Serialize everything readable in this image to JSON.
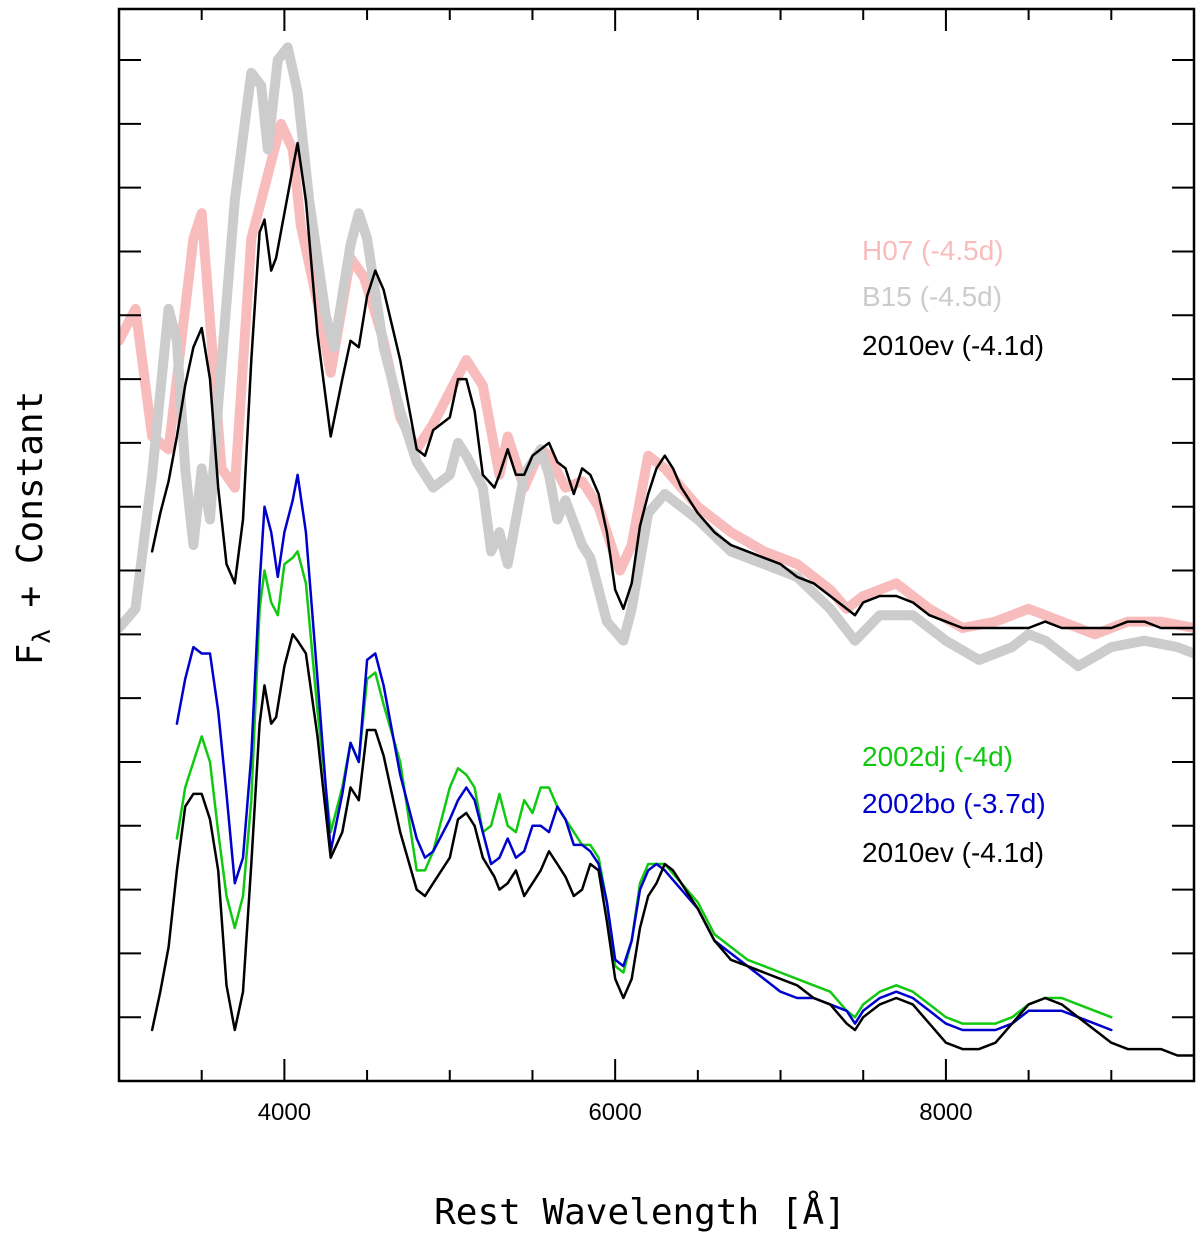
{
  "chart_data": {
    "type": "line",
    "xlabel": "Rest Wavelength [Å]",
    "ylabel": "F",
    "ylabel_subscript": "λ",
    "ylabel_suffix": " + Constant",
    "xlim": [
      3000,
      9500
    ],
    "ylim": [
      0,
      16.8
    ],
    "xticks_major": [
      4000,
      6000,
      8000
    ],
    "xtick_labels": [
      "4000",
      "6000",
      "8000"
    ],
    "xticks_minor": [
      3000,
      3500,
      4500,
      5000,
      5500,
      6500,
      7000,
      7500,
      8500,
      9000,
      9500
    ],
    "yticks": [
      1,
      2,
      3,
      4,
      5,
      6,
      7,
      8,
      9,
      10,
      11,
      12,
      13,
      14,
      15,
      16
    ],
    "legends": [
      {
        "group": "upper",
        "entries": [
          {
            "label": "H07 (-4.5d)",
            "color": "#f9bcbc"
          },
          {
            "label": "B15 (-4.5d)",
            "color": "#cccccc"
          },
          {
            "label": "2010ev (-4.1d)",
            "color": "#000000"
          }
        ]
      },
      {
        "group": "lower",
        "entries": [
          {
            "label": "2002dj (-4d)",
            "color": "#11c911"
          },
          {
            "label": "2002bo (-3.7d)",
            "color": "#0000cc"
          },
          {
            "label": "2010ev (-4.1d)",
            "color": "#000000"
          }
        ]
      }
    ],
    "series": [
      {
        "name": "H07 (-4.5d)",
        "color": "#f9bcbc",
        "width": 10,
        "x": [
          3000,
          3100,
          3200,
          3300,
          3450,
          3500,
          3620,
          3700,
          3800,
          3900,
          3980,
          4050,
          4100,
          4200,
          4280,
          4400,
          4480,
          4530,
          4600,
          4700,
          4800,
          4900,
          5000,
          5100,
          5200,
          5300,
          5350,
          5450,
          5550,
          5600,
          5700,
          5800,
          5900,
          6000,
          6030,
          6100,
          6200,
          6300,
          6500,
          6700,
          6900,
          7100,
          7300,
          7400,
          7500,
          7700,
          7900,
          8100,
          8300,
          8500,
          8700,
          8900,
          9100,
          9300,
          9500
        ],
        "y": [
          11.6,
          12.1,
          10.1,
          9.9,
          13.2,
          13.6,
          9.6,
          9.3,
          13.2,
          14.2,
          15.0,
          14.6,
          13.4,
          12.2,
          11.1,
          12.9,
          12.6,
          12.2,
          11.6,
          10.4,
          9.9,
          10.3,
          10.8,
          11.3,
          10.9,
          9.5,
          10.1,
          9.3,
          9.9,
          9.8,
          9.3,
          9.4,
          9.0,
          8.2,
          8.0,
          8.4,
          9.8,
          9.6,
          9.0,
          8.6,
          8.3,
          8.1,
          7.7,
          7.4,
          7.6,
          7.8,
          7.4,
          7.1,
          7.2,
          7.4,
          7.2,
          7.0,
          7.2,
          7.2,
          7.1
        ]
      },
      {
        "name": "B15 (-4.5d)",
        "color": "#cccccc",
        "width": 10,
        "x": [
          3000,
          3100,
          3200,
          3300,
          3350,
          3400,
          3450,
          3500,
          3550,
          3600,
          3700,
          3800,
          3860,
          3900,
          3960,
          4020,
          4080,
          4150,
          4250,
          4300,
          4400,
          4450,
          4500,
          4600,
          4700,
          4800,
          4900,
          5000,
          5050,
          5100,
          5200,
          5250,
          5300,
          5350,
          5450,
          5550,
          5600,
          5650,
          5700,
          5800,
          5850,
          5950,
          6050,
          6100,
          6200,
          6300,
          6500,
          6700,
          6900,
          7100,
          7300,
          7450,
          7600,
          7800,
          8000,
          8200,
          8400,
          8500,
          8600,
          8800,
          9000,
          9200,
          9400,
          9500
        ],
        "y": [
          7.1,
          7.4,
          9.5,
          12.1,
          11.6,
          9.6,
          8.4,
          9.6,
          8.8,
          10.6,
          13.8,
          15.8,
          15.6,
          14.6,
          16.0,
          16.2,
          15.5,
          13.8,
          12.0,
          11.5,
          13.1,
          13.6,
          13.2,
          11.5,
          10.5,
          9.7,
          9.3,
          9.5,
          10.0,
          9.8,
          9.3,
          8.3,
          8.6,
          8.1,
          9.5,
          9.9,
          9.5,
          8.8,
          9.1,
          8.4,
          8.2,
          7.2,
          6.9,
          7.4,
          8.9,
          9.2,
          8.8,
          8.3,
          8.1,
          7.9,
          7.4,
          6.9,
          7.3,
          7.3,
          6.9,
          6.6,
          6.8,
          7.0,
          6.9,
          6.5,
          6.8,
          6.9,
          6.8,
          6.7
        ]
      },
      {
        "name": "2010ev (-4.1d) upper",
        "color": "#000000",
        "width": 2.5,
        "x": [
          3200,
          3250,
          3300,
          3350,
          3400,
          3450,
          3500,
          3550,
          3600,
          3650,
          3700,
          3750,
          3800,
          3850,
          3880,
          3920,
          3950,
          4000,
          4050,
          4080,
          4130,
          4200,
          4280,
          4350,
          4400,
          4450,
          4500,
          4550,
          4600,
          4700,
          4800,
          4850,
          4900,
          5000,
          5050,
          5100,
          5150,
          5200,
          5270,
          5300,
          5350,
          5400,
          5450,
          5500,
          5550,
          5600,
          5650,
          5700,
          5750,
          5800,
          5850,
          5900,
          5950,
          6000,
          6050,
          6100,
          6150,
          6200,
          6250,
          6300,
          6350,
          6400,
          6500,
          6600,
          6700,
          6800,
          6900,
          7000,
          7100,
          7200,
          7300,
          7400,
          7450,
          7500,
          7600,
          7700,
          7800,
          7900,
          8000,
          8100,
          8200,
          8300,
          8400,
          8500,
          8600,
          8700,
          8800,
          8900,
          9000,
          9100,
          9200,
          9300,
          9400,
          9500
        ],
        "y": [
          8.3,
          8.9,
          9.4,
          10.1,
          10.9,
          11.5,
          11.8,
          11.0,
          9.3,
          8.1,
          7.8,
          8.8,
          11.3,
          13.3,
          13.5,
          12.7,
          12.9,
          13.6,
          14.3,
          14.7,
          13.8,
          11.7,
          10.1,
          11.0,
          11.6,
          11.5,
          12.3,
          12.7,
          12.4,
          11.3,
          9.9,
          9.8,
          10.2,
          10.4,
          11.0,
          11.0,
          10.5,
          9.5,
          9.3,
          9.5,
          9.9,
          9.5,
          9.5,
          9.8,
          9.9,
          10.0,
          9.7,
          9.6,
          9.2,
          9.6,
          9.5,
          9.2,
          8.6,
          7.7,
          7.4,
          7.8,
          8.7,
          9.2,
          9.6,
          9.8,
          9.6,
          9.3,
          8.9,
          8.6,
          8.4,
          8.3,
          8.2,
          8.1,
          7.9,
          7.8,
          7.6,
          7.4,
          7.3,
          7.5,
          7.6,
          7.6,
          7.5,
          7.3,
          7.2,
          7.1,
          7.1,
          7.1,
          7.1,
          7.1,
          7.2,
          7.1,
          7.1,
          7.1,
          7.1,
          7.2,
          7.2,
          7.1,
          7.1,
          7.1
        ]
      },
      {
        "name": "2002dj (-4d)",
        "color": "#11c911",
        "width": 2.5,
        "x": [
          3350,
          3400,
          3450,
          3500,
          3550,
          3600,
          3650,
          3700,
          3750,
          3800,
          3850,
          3880,
          3920,
          3960,
          4000,
          4050,
          4080,
          4130,
          4200,
          4280,
          4350,
          4400,
          4450,
          4500,
          4550,
          4600,
          4700,
          4800,
          4850,
          4900,
          5000,
          5050,
          5100,
          5150,
          5200,
          5250,
          5300,
          5350,
          5400,
          5450,
          5500,
          5550,
          5600,
          5650,
          5700,
          5750,
          5800,
          5850,
          5900,
          5950,
          6000,
          6050,
          6100,
          6150,
          6200,
          6250,
          6300,
          6400,
          6500,
          6600,
          6700,
          6800,
          6900,
          7000,
          7100,
          7200,
          7300,
          7400,
          7450,
          7500,
          7600,
          7700,
          7800,
          7900,
          8000,
          8100,
          8200,
          8300,
          8400,
          8500,
          8600,
          8700,
          8800,
          8900,
          9000
        ],
        "y": [
          3.8,
          4.6,
          5.0,
          5.4,
          5.0,
          3.9,
          2.9,
          2.4,
          2.9,
          4.4,
          7.4,
          8.0,
          7.5,
          7.3,
          8.1,
          8.2,
          8.3,
          7.8,
          5.8,
          3.9,
          4.6,
          5.3,
          5.0,
          6.3,
          6.4,
          5.9,
          5.0,
          3.3,
          3.3,
          3.6,
          4.6,
          4.9,
          4.8,
          4.6,
          3.9,
          4.0,
          4.5,
          4.0,
          3.9,
          4.4,
          4.2,
          4.6,
          4.6,
          4.3,
          4.1,
          3.9,
          3.7,
          3.7,
          3.5,
          2.8,
          1.8,
          1.7,
          2.2,
          3.1,
          3.4,
          3.4,
          3.4,
          3.1,
          2.8,
          2.3,
          2.1,
          1.9,
          1.8,
          1.7,
          1.6,
          1.5,
          1.4,
          1.1,
          1.0,
          1.2,
          1.4,
          1.5,
          1.4,
          1.2,
          1.0,
          0.9,
          0.9,
          0.9,
          1.0,
          1.2,
          1.3,
          1.3,
          1.2,
          1.1,
          1.0
        ]
      },
      {
        "name": "2002bo (-3.7d)",
        "color": "#0000cc",
        "width": 2.5,
        "x": [
          3350,
          3400,
          3450,
          3500,
          3550,
          3600,
          3650,
          3700,
          3750,
          3800,
          3850,
          3880,
          3920,
          3960,
          4000,
          4050,
          4080,
          4130,
          4200,
          4280,
          4350,
          4400,
          4450,
          4500,
          4550,
          4600,
          4700,
          4800,
          4850,
          4900,
          5000,
          5050,
          5100,
          5150,
          5200,
          5250,
          5300,
          5350,
          5400,
          5450,
          5500,
          5550,
          5600,
          5650,
          5700,
          5750,
          5800,
          5850,
          5900,
          5950,
          6000,
          6050,
          6100,
          6150,
          6200,
          6250,
          6300,
          6400,
          6500,
          6600,
          6700,
          6800,
          6900,
          7000,
          7100,
          7200,
          7300,
          7400,
          7450,
          7500,
          7600,
          7700,
          7800,
          7900,
          8000,
          8100,
          8200,
          8300,
          8400,
          8500,
          8600,
          8700,
          8800,
          8900,
          9000
        ],
        "y": [
          5.6,
          6.3,
          6.8,
          6.7,
          6.7,
          5.8,
          4.5,
          3.1,
          3.5,
          5.1,
          7.8,
          9.0,
          8.6,
          7.9,
          8.6,
          9.1,
          9.5,
          8.6,
          6.3,
          3.6,
          4.5,
          5.3,
          5.0,
          6.6,
          6.7,
          6.2,
          4.8,
          3.8,
          3.5,
          3.6,
          4.1,
          4.4,
          4.6,
          4.4,
          3.9,
          3.4,
          3.5,
          3.8,
          3.5,
          3.6,
          4.0,
          4.0,
          3.9,
          4.3,
          4.1,
          3.7,
          3.7,
          3.6,
          3.4,
          2.8,
          1.9,
          1.8,
          2.2,
          3.0,
          3.3,
          3.4,
          3.3,
          3.0,
          2.7,
          2.2,
          2.0,
          1.8,
          1.6,
          1.4,
          1.3,
          1.3,
          1.2,
          1.1,
          0.9,
          1.1,
          1.3,
          1.4,
          1.3,
          1.1,
          0.9,
          0.8,
          0.8,
          0.8,
          0.9,
          1.1,
          1.1,
          1.1,
          1.0,
          0.9,
          0.8
        ]
      },
      {
        "name": "2010ev (-4.1d) lower",
        "color": "#000000",
        "width": 2.5,
        "x": [
          3200,
          3250,
          3300,
          3350,
          3400,
          3450,
          3500,
          3550,
          3600,
          3650,
          3700,
          3750,
          3800,
          3850,
          3880,
          3920,
          3950,
          4000,
          4050,
          4080,
          4130,
          4200,
          4280,
          4350,
          4400,
          4450,
          4500,
          4550,
          4600,
          4700,
          4800,
          4850,
          4900,
          5000,
          5050,
          5100,
          5150,
          5200,
          5270,
          5300,
          5350,
          5400,
          5450,
          5500,
          5550,
          5600,
          5650,
          5700,
          5750,
          5800,
          5850,
          5900,
          5950,
          6000,
          6050,
          6100,
          6150,
          6200,
          6250,
          6300,
          6350,
          6400,
          6500,
          6600,
          6700,
          6800,
          6900,
          7000,
          7100,
          7200,
          7300,
          7400,
          7450,
          7500,
          7600,
          7700,
          7800,
          7900,
          8000,
          8100,
          8200,
          8300,
          8400,
          8500,
          8600,
          8700,
          8800,
          8900,
          9000,
          9100,
          9200,
          9300,
          9400,
          9500
        ],
        "y": [
          0.8,
          1.4,
          2.1,
          3.3,
          4.3,
          4.5,
          4.5,
          4.1,
          3.3,
          1.5,
          0.8,
          1.4,
          3.4,
          5.6,
          6.2,
          5.6,
          5.7,
          6.5,
          7.0,
          6.9,
          6.7,
          5.4,
          3.5,
          3.9,
          4.6,
          4.4,
          5.5,
          5.5,
          5.1,
          3.9,
          3.0,
          2.9,
          3.1,
          3.5,
          4.1,
          4.2,
          4.0,
          3.5,
          3.2,
          3.0,
          3.1,
          3.3,
          2.9,
          3.1,
          3.3,
          3.6,
          3.4,
          3.2,
          2.9,
          3.0,
          3.4,
          3.3,
          2.5,
          1.6,
          1.3,
          1.6,
          2.4,
          2.9,
          3.1,
          3.4,
          3.3,
          3.1,
          2.7,
          2.2,
          1.9,
          1.8,
          1.7,
          1.6,
          1.5,
          1.3,
          1.2,
          0.9,
          0.8,
          1.0,
          1.2,
          1.3,
          1.2,
          0.9,
          0.6,
          0.5,
          0.5,
          0.6,
          0.9,
          1.2,
          1.3,
          1.2,
          1.0,
          0.8,
          0.6,
          0.5,
          0.5,
          0.5,
          0.4,
          0.4
        ]
      }
    ]
  }
}
